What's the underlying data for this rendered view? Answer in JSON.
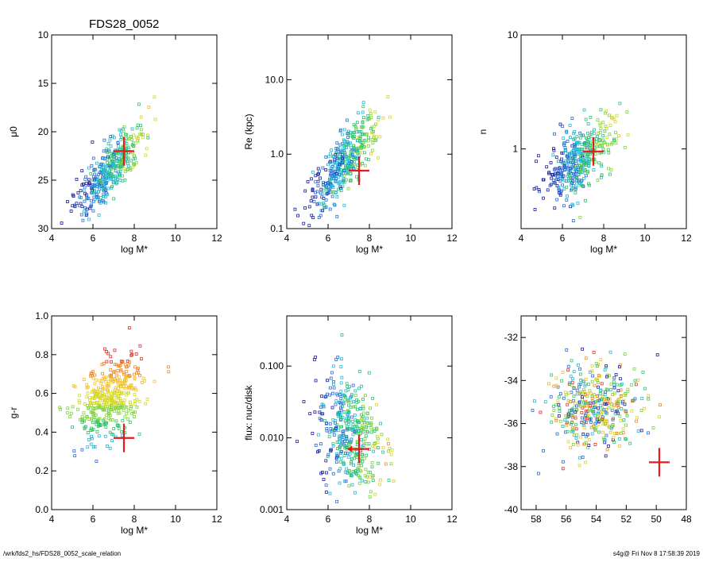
{
  "title": "FDS28_0052",
  "footer": {
    "left": "/wrk/fds2_hs/FDS28_0052_scale_relation",
    "right": "s4g@  Fri Nov  8 17:58:39 2019"
  },
  "colors": {
    "frame": "#000000",
    "highlight": "#e41a1c",
    "scatter_palette": [
      "#1d1d9e",
      "#2a6bd6",
      "#22b8d8",
      "#2ec46a",
      "#7fd43a",
      "#d4d928",
      "#f0c22a",
      "#f08a2a",
      "#e0302a"
    ]
  },
  "chart_data": [
    {
      "id": "mu0",
      "type": "scatter",
      "title": "FDS28_0052",
      "xlabel": "log M*",
      "ylabel": "μ0",
      "xlim": [
        4,
        12
      ],
      "ylim": [
        30,
        10
      ],
      "xticks": [
        "4",
        "6",
        "8",
        "10",
        "12"
      ],
      "yticks": [
        "10",
        "15",
        "20",
        "25",
        "30"
      ],
      "marker": {
        "x": 7.5,
        "y": 22.0,
        "style": "cross"
      },
      "cloud": {
        "x_mean": 6.8,
        "x_sd": 0.8,
        "y_intercept": 24.0,
        "y_slope": -2.2,
        "y_sd": 1.4
      }
    },
    {
      "id": "re",
      "type": "scatter",
      "xlabel": "log M*",
      "ylabel": "Re (kpc)",
      "xlim": [
        4,
        12
      ],
      "ylim": [
        0.1,
        40
      ],
      "log_y": true,
      "xticks": [
        "4",
        "6",
        "8",
        "10",
        "12"
      ],
      "yticks": [
        "0.1",
        "1.0",
        "10.0"
      ],
      "marker": {
        "x": 7.5,
        "y": 0.6,
        "style": "cross"
      },
      "cloud": {
        "x_mean": 6.8,
        "x_sd": 0.8,
        "y_intercept": -0.1,
        "y_slope": 0.3,
        "y_sd": 0.2
      }
    },
    {
      "id": "n",
      "type": "scatter",
      "xlabel": "log M*",
      "ylabel": "n",
      "xlim": [
        4,
        12
      ],
      "ylim": [
        0.2,
        10
      ],
      "log_y": true,
      "xticks": [
        "4",
        "6",
        "8",
        "10",
        "12"
      ],
      "yticks": [
        "1",
        "10"
      ],
      "marker": {
        "x": 7.5,
        "y": 0.95,
        "style": "cross"
      },
      "cloud": {
        "x_mean": 6.8,
        "x_sd": 0.8,
        "y_intercept": -0.1,
        "y_slope": 0.12,
        "y_sd": 0.15
      }
    },
    {
      "id": "gr",
      "type": "scatter",
      "xlabel": "log M*",
      "ylabel": "g-r",
      "xlim": [
        4,
        12
      ],
      "ylim": [
        0.0,
        1.0
      ],
      "xticks": [
        "4",
        "6",
        "8",
        "10",
        "12"
      ],
      "yticks": [
        "0.0",
        "0.2",
        "0.4",
        "0.6",
        "0.8",
        "1.0"
      ],
      "marker": {
        "x": 7.5,
        "y": 0.37,
        "style": "cross"
      },
      "cloud": {
        "x_mean": 6.8,
        "x_sd": 0.8,
        "y_intercept": 0.56,
        "y_slope": 0.05,
        "y_sd": 0.1
      }
    },
    {
      "id": "flux",
      "type": "scatter",
      "xlabel": "log M*",
      "ylabel": "flux: nuc/disk",
      "xlim": [
        4,
        12
      ],
      "ylim": [
        0.001,
        0.5
      ],
      "log_y": true,
      "xticks": [
        "4",
        "6",
        "8",
        "10",
        "12"
      ],
      "yticks": [
        "0.001",
        "0.010",
        "0.100"
      ],
      "marker": {
        "x": 7.5,
        "y": 0.007,
        "style": "cross-arrow-left"
      },
      "cloud": {
        "x_mean": 7.0,
        "x_sd": 0.8,
        "y_intercept": -1.9,
        "y_slope": -0.1,
        "y_sd": 0.4
      }
    },
    {
      "id": "radec",
      "type": "scatter",
      "xlabel": "",
      "ylabel": "",
      "xlim": [
        59,
        48
      ],
      "ylim": [
        -40,
        -31
      ],
      "xticks": [
        "58",
        "56",
        "54",
        "52",
        "50",
        "48"
      ],
      "yticks": [
        "-40",
        "-38",
        "-36",
        "-34",
        "-32"
      ],
      "marker": {
        "x": 49.8,
        "y": -37.8,
        "style": "cross"
      },
      "cloud": {
        "x_mean": 54.0,
        "x_sd": 1.5,
        "y_mean": -35.3,
        "y_sd": 1.0
      }
    }
  ]
}
